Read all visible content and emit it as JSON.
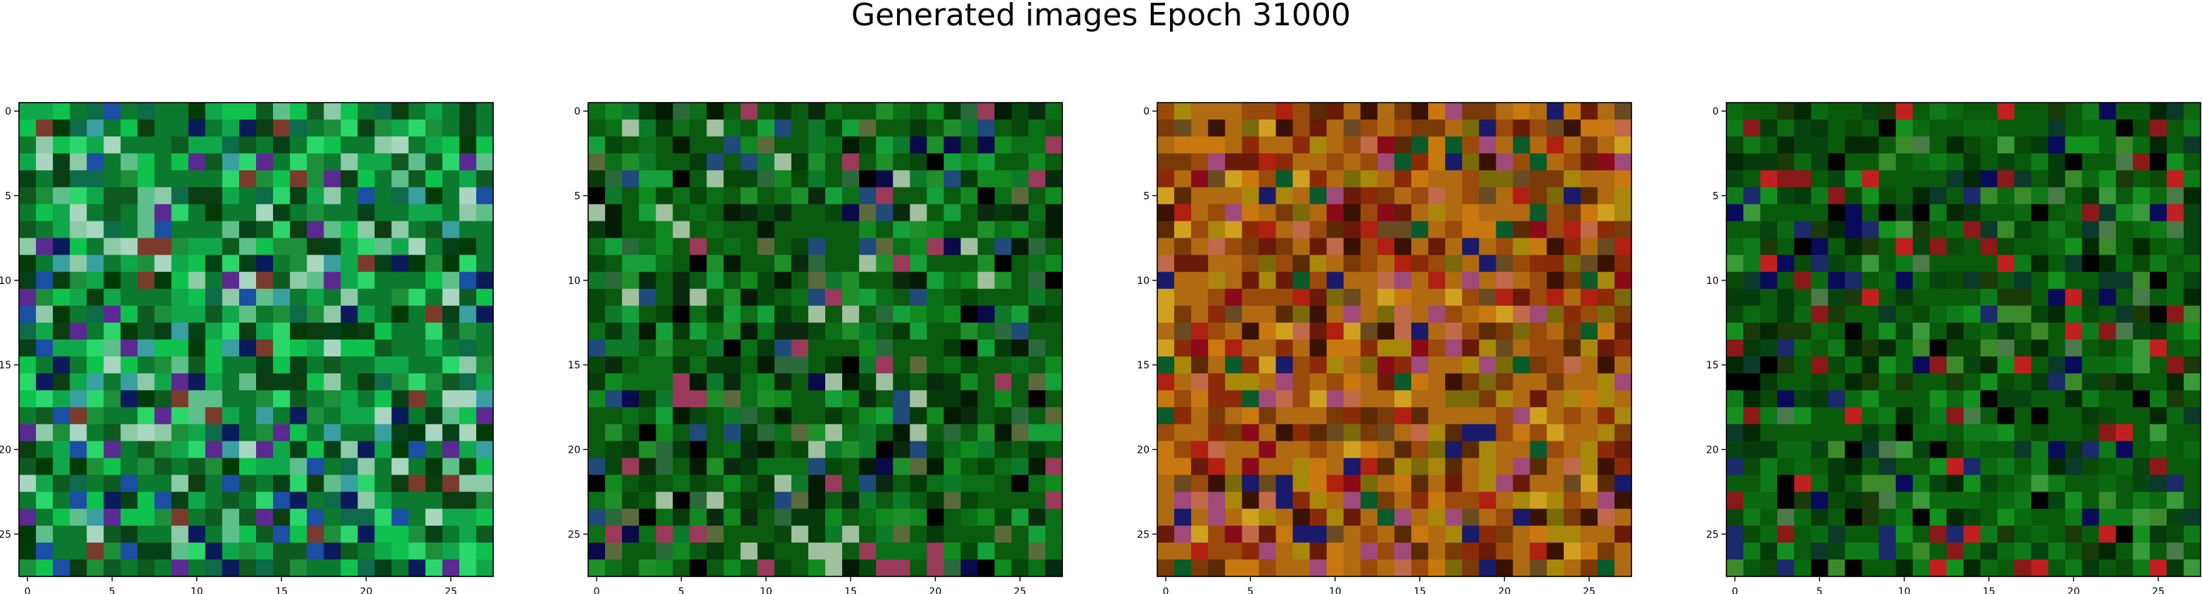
{
  "chart_data": {
    "type": "heatmap",
    "title": "Generated images Epoch 31000",
    "panels": [
      {
        "name": "",
        "description_colors": "green-dominant noise",
        "palette": [
          "#0b7a2e",
          "#10a64a",
          "#0fc24e",
          "#1d8f3a",
          "#0e5a20",
          "#064017",
          "#2bd66a",
          "#5fbf8a",
          "#8ec9a8",
          "#0d6b4a",
          "#0c3d11",
          "#003b07",
          "#1a4fa3",
          "#0a1a5a",
          "#5a2a90",
          "#7a3b2c",
          "#3a9fa0",
          "#a9d6c0"
        ],
        "seed": 11,
        "xticks": [
          0,
          5,
          10,
          15,
          20,
          25
        ],
        "yticks": [
          0,
          5,
          10,
          15,
          20,
          25
        ]
      },
      {
        "name": "",
        "palette": [
          "#0a5a10",
          "#0b6f18",
          "#108a1e",
          "#06480c",
          "#053a0a",
          "#0c7a2a",
          "#15a03a",
          "#1f8f2a",
          "#031a04",
          "#000000",
          "#0a2a10",
          "#2a6a3a",
          "#a0c0a0",
          "#9a3a5a",
          "#1f4a7a",
          "#0a0a4a",
          "#5a6a3a"
        ],
        "seed": 23,
        "xticks": [
          0,
          5,
          10,
          15,
          20,
          25
        ],
        "yticks": [
          0,
          5,
          10,
          15,
          20,
          25
        ]
      },
      {
        "name": "",
        "palette": [
          "#b06a12",
          "#9a4a0a",
          "#c8780f",
          "#7a3a08",
          "#8a2a06",
          "#b02010",
          "#6a1a08",
          "#a8880a",
          "#d0a020",
          "#5a2a05",
          "#3a1203",
          "#7a6a0a",
          "#c06a4a",
          "#a04a7a",
          "#1a1a6a",
          "#0a5a2a",
          "#8a0a1a",
          "#6a4a20"
        ],
        "seed": 37,
        "xticks": [
          0,
          5,
          10,
          15,
          20,
          25
        ],
        "yticks": [
          0,
          5,
          10,
          15,
          20,
          25
        ]
      },
      {
        "name": "",
        "palette": [
          "#0a5a0c",
          "#0b6a10",
          "#0e7a18",
          "#064510",
          "#053a0a",
          "#0a4a08",
          "#14901e",
          "#1a3a0a",
          "#022804",
          "#000000",
          "#0c3a2a",
          "#3a8a2a",
          "#c02020",
          "#8a1a1a",
          "#1a2a6a",
          "#0a0a5a",
          "#4a7a4a",
          "#3a9a3a"
        ],
        "seed": 53,
        "xticks": [
          0,
          5,
          10,
          15,
          20,
          25
        ],
        "yticks": [
          0,
          5,
          10,
          15,
          20,
          25
        ]
      }
    ],
    "grid_size": 28,
    "xlim": [
      -0.5,
      27.5
    ],
    "ylim": [
      27.5,
      -0.5
    ],
    "grid": false,
    "legend": "none"
  }
}
